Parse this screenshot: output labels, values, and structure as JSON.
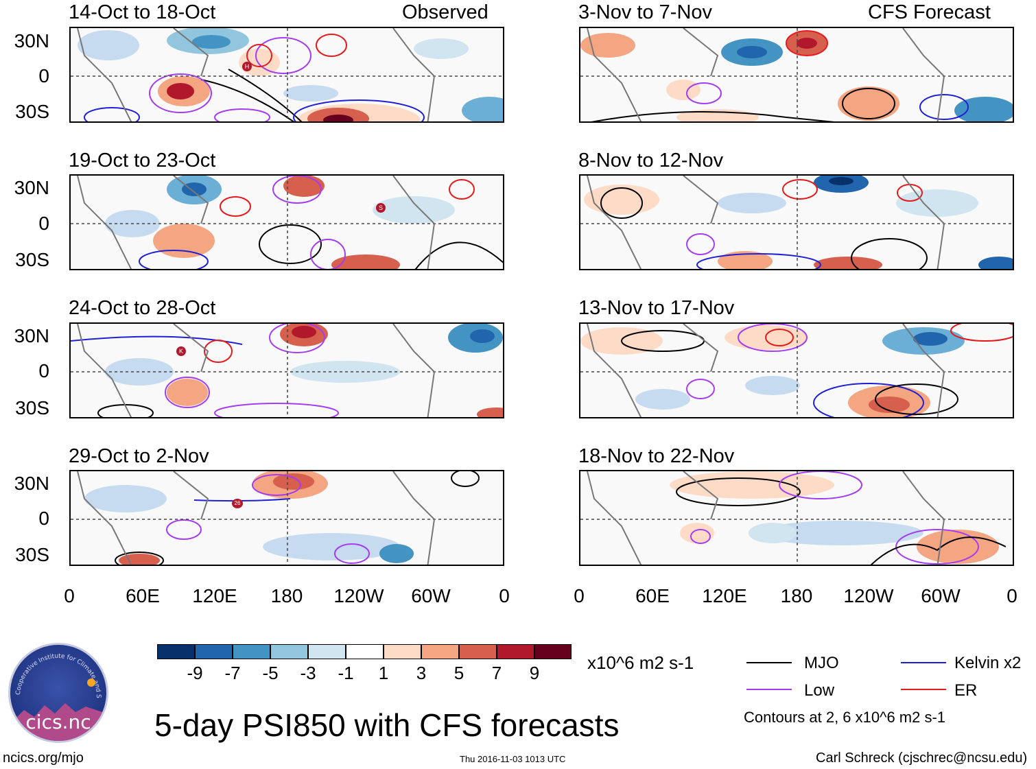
{
  "title": "5-day PSI850 with CFS forecasts",
  "left_header": "Observed",
  "right_header": "CFS Forecast",
  "panels_left": [
    {
      "period": "14-Oct to 18-Oct"
    },
    {
      "period": "19-Oct to 23-Oct"
    },
    {
      "period": "24-Oct to 28-Oct"
    },
    {
      "period": "29-Oct to 2-Nov"
    }
  ],
  "panels_right": [
    {
      "period": "3-Nov to 7-Nov"
    },
    {
      "period": "8-Nov to 12-Nov"
    },
    {
      "period": "13-Nov to 17-Nov"
    },
    {
      "period": "18-Nov to 22-Nov"
    }
  ],
  "lat_ticks": [
    "30N",
    "0",
    "30S"
  ],
  "lon_ticks": [
    "0",
    "60E",
    "120E",
    "180",
    "120W",
    "60W",
    "0"
  ],
  "storm_markers": [
    "H",
    "S",
    "K",
    "26"
  ],
  "colorbar": {
    "unit": "x10^6 m2 s-1",
    "labels": [
      "-9",
      "-7",
      "-5",
      "-3",
      "-1",
      "1",
      "3",
      "5",
      "7",
      "9"
    ],
    "colors": [
      "#08306b",
      "#2166ac",
      "#4393c3",
      "#92c5de",
      "#d1e5f0",
      "#ffffff",
      "#fddbc7",
      "#f4a582",
      "#d6604d",
      "#b2182b",
      "#67001f"
    ]
  },
  "legend": {
    "mjo": {
      "label": "MJO",
      "color": "#000000"
    },
    "kelvin": {
      "label": "Kelvin x2",
      "color": "#1f1fd6"
    },
    "low": {
      "label": "Low",
      "color": "#a43cf0"
    },
    "er": {
      "label": "ER",
      "color": "#e41a1c"
    },
    "note": "Contours at 2, 6 x10^6 m2 s-1"
  },
  "logo": {
    "text": "cics.nc",
    "ring_text": "Cooperative Institute for Climate and Satellites"
  },
  "footer": {
    "website": "ncics.org/mjo",
    "timestamp": "Thu 2016-11-03 1013 UTC",
    "author": "Carl Schreck (cjschrec@ncsu.edu)"
  }
}
